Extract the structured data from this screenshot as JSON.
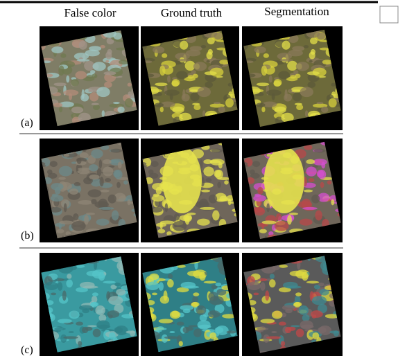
{
  "header": {
    "columns": [
      "False color",
      "Ground truth",
      "Segmentation"
    ]
  },
  "rows": [
    {
      "label": "(a)"
    },
    {
      "label": "(b)"
    },
    {
      "label": "(c)"
    }
  ]
}
